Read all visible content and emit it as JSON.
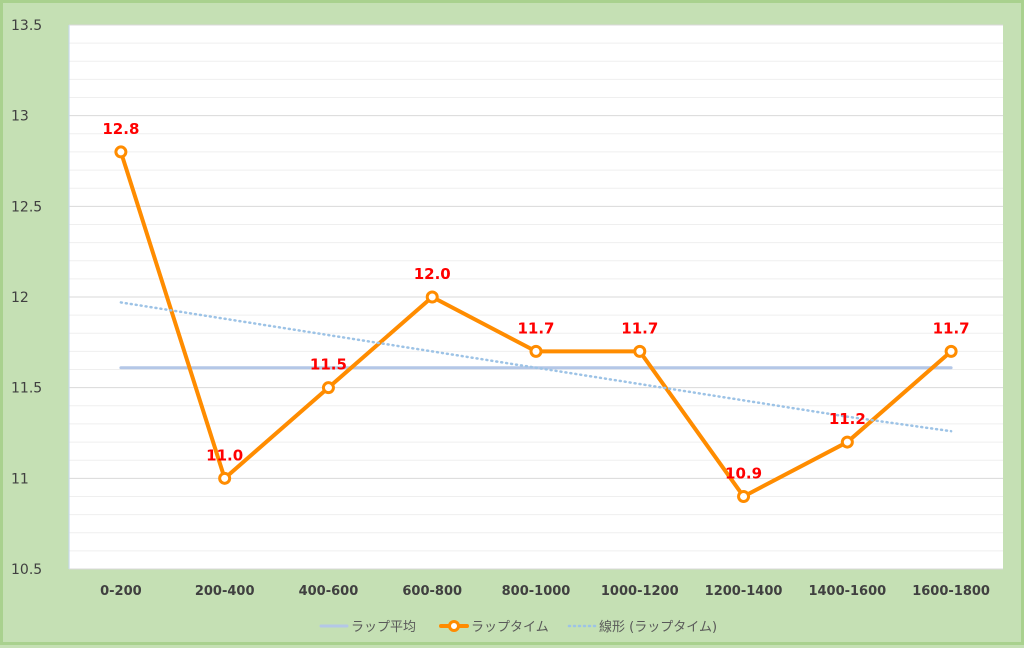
{
  "chart_data": {
    "type": "line",
    "categories": [
      "0-200",
      "200-400",
      "400-600",
      "600-800",
      "800-1000",
      "1000-1200",
      "1200-1400",
      "1400-1600",
      "1600-1800"
    ],
    "series": [
      {
        "name": "ラップ平均",
        "values": [
          11.61,
          11.61,
          11.61,
          11.61,
          11.61,
          11.61,
          11.61,
          11.61,
          11.61
        ],
        "color": "#b4c7e7",
        "style": "solid",
        "markers": false
      },
      {
        "name": "ラップタイム",
        "values": [
          12.8,
          11.0,
          11.5,
          12.0,
          11.7,
          11.7,
          10.9,
          11.2,
          11.7
        ],
        "color": "#ff8c00",
        "style": "solid",
        "markers": true,
        "data_labels": [
          "12.8",
          "11.0",
          "11.5",
          "12.0",
          "11.7",
          "11.7",
          "10.9",
          "11.2",
          "11.7"
        ]
      },
      {
        "name": "線形 (ラップタイム)",
        "values": [
          11.97,
          11.88,
          11.79,
          11.7,
          11.61,
          11.52,
          11.43,
          11.34,
          11.26
        ],
        "color": "#9dc3e6",
        "style": "dotted",
        "markers": false
      }
    ],
    "ylim": [
      10.5,
      13.5
    ],
    "yticks": [
      "10.5",
      "11",
      "11.5",
      "12",
      "12.5",
      "13",
      "13.5"
    ],
    "data_label_color": "#ff0000",
    "grid": true,
    "legend_position": "bottom",
    "title": "",
    "xlabel": "",
    "ylabel": ""
  }
}
